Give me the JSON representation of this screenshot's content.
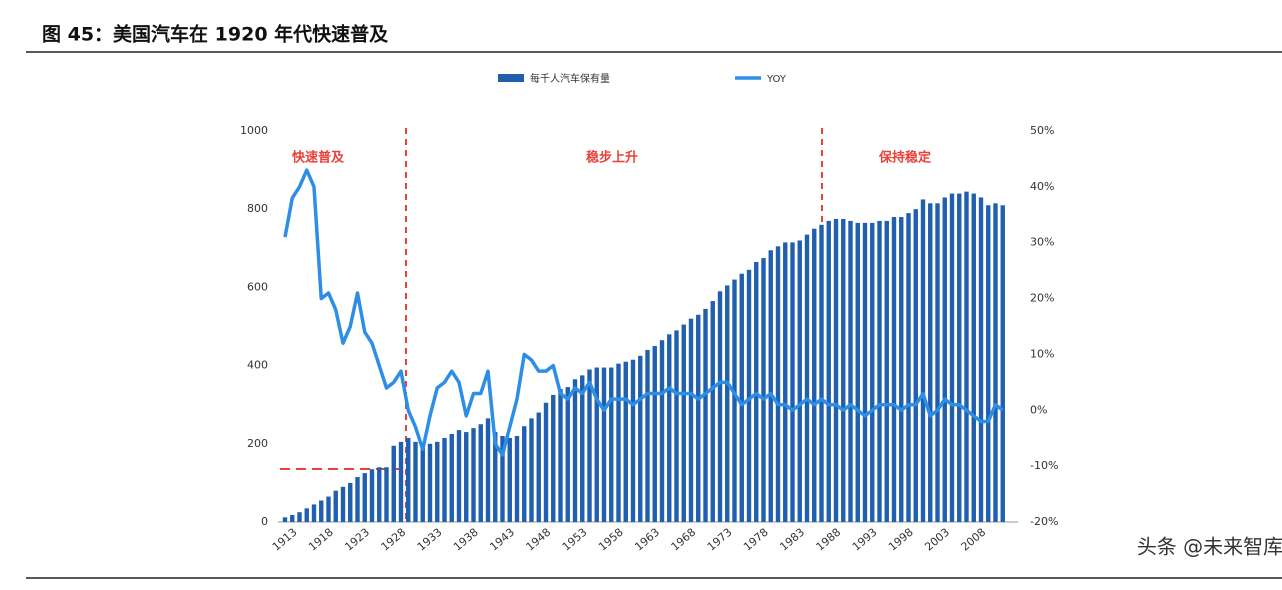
{
  "chart_data": {
    "type": "bar-line",
    "title": "图 45：美国汽车在 1920 年代快速普及",
    "watermark": "头条 @未来智库",
    "annotations": [
      "快速普及",
      "稳步上升",
      "保持稳定"
    ],
    "categories": [
      "1913",
      null,
      null,
      null,
      null,
      "1918",
      null,
      null,
      null,
      null,
      "1923",
      null,
      null,
      null,
      null,
      "1928",
      null,
      null,
      null,
      null,
      "1933",
      null,
      null,
      null,
      null,
      "1938",
      null,
      null,
      null,
      null,
      "1943",
      null,
      null,
      null,
      null,
      "1948",
      null,
      null,
      null,
      null,
      "1953",
      null,
      null,
      null,
      null,
      "1958",
      null,
      null,
      null,
      null,
      "1963",
      null,
      null,
      null,
      null,
      "1968",
      null,
      null,
      null,
      null,
      "1973",
      null,
      null,
      null,
      null,
      "1978",
      null,
      null,
      null,
      null,
      "1983",
      null,
      null,
      null,
      null,
      "1988",
      null,
      null,
      null,
      null,
      "1993",
      null,
      null,
      null,
      null,
      "1998",
      null,
      null,
      null,
      null,
      "2003",
      null,
      null,
      null,
      null,
      "2008",
      null,
      null,
      null,
      null
    ],
    "series": [
      {
        "name": "每千人汽车保有量",
        "type": "bar",
        "color": "#1f5fae",
        "values": [
          12,
          18,
          25,
          35,
          45,
          55,
          65,
          80,
          90,
          100,
          115,
          125,
          135,
          140,
          140,
          195,
          205,
          215,
          205,
          195,
          200,
          205,
          215,
          225,
          235,
          230,
          240,
          250,
          265,
          230,
          220,
          215,
          220,
          245,
          265,
          280,
          305,
          325,
          340,
          345,
          365,
          375,
          390,
          395,
          395,
          395,
          405,
          410,
          415,
          425,
          440,
          450,
          465,
          480,
          490,
          505,
          520,
          530,
          545,
          565,
          590,
          605,
          620,
          635,
          645,
          665,
          675,
          695,
          705,
          715,
          715,
          720,
          735,
          750,
          760,
          770,
          775,
          775,
          770,
          765,
          765,
          765,
          770,
          770,
          780,
          780,
          790,
          800,
          825,
          815,
          815,
          830,
          840,
          840,
          845,
          840,
          830,
          810,
          815,
          810
        ]
      },
      {
        "name": "YOY",
        "type": "line",
        "axis": "y2",
        "color": "#2e8ee6",
        "values": [
          31,
          38,
          40,
          43,
          40,
          20,
          21,
          18,
          12,
          15,
          21,
          14,
          12,
          8,
          4,
          5,
          7,
          0,
          -3,
          -7,
          -1,
          4,
          5,
          7,
          5,
          -1,
          3,
          3,
          7,
          -6,
          -8,
          -3,
          2,
          10,
          9,
          7,
          7,
          8,
          3,
          2,
          4,
          3,
          5,
          2,
          0,
          2,
          2,
          2,
          1,
          2,
          3,
          3,
          3,
          4,
          3,
          3,
          3,
          2,
          3,
          4,
          5,
          5,
          3,
          1,
          2,
          3,
          2,
          3,
          1,
          1,
          0,
          1,
          2,
          1,
          2,
          1,
          1,
          0,
          1,
          0,
          -1,
          0,
          1,
          1,
          1,
          0,
          1,
          1,
          3,
          -1,
          0,
          2,
          1,
          1,
          0,
          -1,
          -2,
          -2,
          1,
          0
        ]
      }
    ],
    "ylim": [
      0,
      1000
    ],
    "yticks": [
      0,
      200,
      400,
      600,
      800,
      1000
    ],
    "y2lim": [
      -20,
      50
    ],
    "y2ticks": [
      {
        "value": -20,
        "label": "-20%"
      },
      {
        "value": -10,
        "label": "-10%"
      },
      {
        "value": 0,
        "label": "0%"
      },
      {
        "value": 10,
        "label": "10%"
      },
      {
        "value": 20,
        "label": "20%"
      },
      {
        "value": 30,
        "label": "30%"
      },
      {
        "value": 40,
        "label": "40%"
      },
      {
        "value": 50,
        "label": "50%"
      }
    ]
  }
}
